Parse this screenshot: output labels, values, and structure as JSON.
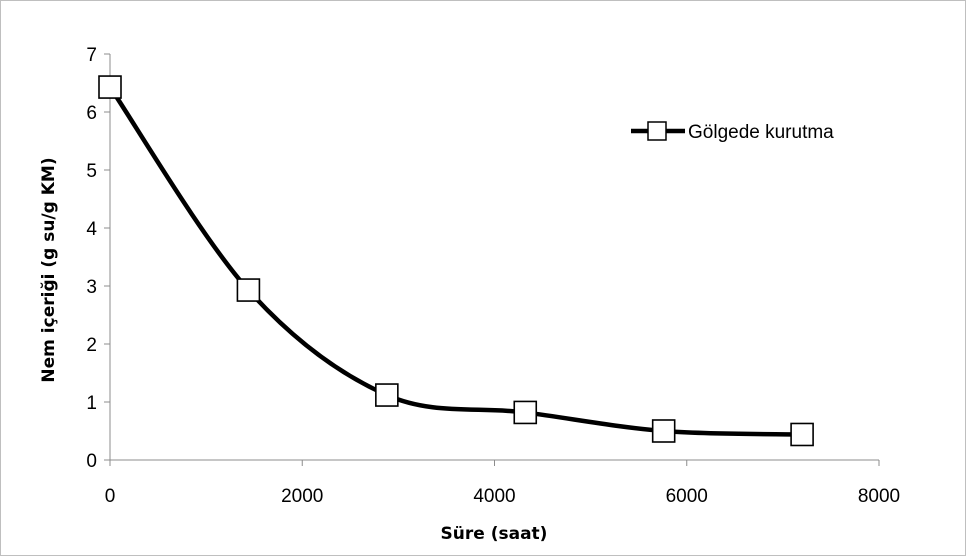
{
  "chart_data": {
    "type": "line",
    "xlabel": "Süre (saat)",
    "ylabel": "Nem içeriği (g su/g KM)",
    "xlim": [
      0,
      8000
    ],
    "ylim": [
      0,
      7
    ],
    "x_ticks": [
      0,
      2000,
      4000,
      6000,
      8000
    ],
    "y_ticks": [
      0,
      1,
      2,
      3,
      4,
      5,
      6,
      7
    ],
    "x_tick_labels": [
      "0",
      "2000",
      "4000",
      "6000",
      "8000"
    ],
    "y_tick_labels": [
      "0",
      "1",
      "2",
      "3",
      "4",
      "5",
      "6",
      "7"
    ],
    "grid": false,
    "smooth": true,
    "legend_position": "top-right",
    "series": [
      {
        "name": "Gölgede kurutma",
        "marker": "square-open",
        "color": "#000000",
        "x": [
          0,
          1440,
          2880,
          4320,
          5760,
          7200
        ],
        "y": [
          6.43,
          2.93,
          1.12,
          0.82,
          0.5,
          0.44
        ]
      }
    ]
  }
}
